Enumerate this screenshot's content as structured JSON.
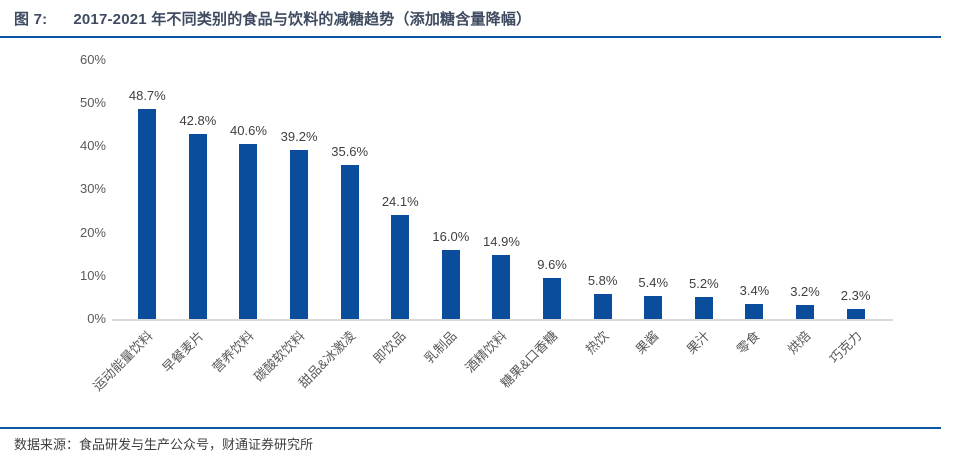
{
  "header": {
    "figure_label": "图 7:",
    "title": "2017-2021 年不同类别的食品与饮料的减糖趋势（添加糖含量降幅）"
  },
  "footer": {
    "source": "数据来源：食品研发与生产公众号，财通证券研究所"
  },
  "colors": {
    "bar": "#0b4d9d",
    "rule": "#0b55a5",
    "title_text": "#3f4b60",
    "axis_line": "#d9d9d9",
    "tick_text": "#595959",
    "value_label": "#3f3f3f"
  },
  "chart_data": {
    "type": "bar",
    "title": "2017-2021 年不同类别的食品与饮料的减糖趋势（添加糖含量降幅）",
    "categories": [
      "运动能量饮料",
      "早餐麦片",
      "营养饮料",
      "碳酸软饮料",
      "甜品&冰激凌",
      "即饮品",
      "乳制品",
      "酒精饮料",
      "糖果&口香糖",
      "热饮",
      "果酱",
      "果汁",
      "零食",
      "烘焙",
      "巧克力"
    ],
    "values": [
      48.7,
      42.8,
      40.6,
      39.2,
      35.6,
      24.1,
      16.0,
      14.9,
      9.6,
      5.8,
      5.4,
      5.2,
      3.4,
      3.2,
      2.3
    ],
    "value_labels": [
      "48.7%",
      "42.8%",
      "40.6%",
      "39.2%",
      "35.6%",
      "24.1%",
      "16.0%",
      "14.9%",
      "9.6%",
      "5.8%",
      "5.4%",
      "5.2%",
      "3.4%",
      "3.2%",
      "2.3%"
    ],
    "xlabel": "",
    "ylabel": "",
    "ylim": [
      0,
      60
    ],
    "yticks": [
      60,
      50,
      40,
      30,
      20,
      10,
      0
    ],
    "ytick_suffix": "%",
    "grid": false,
    "legend": null,
    "bar_label_rotation_deg": -45
  }
}
